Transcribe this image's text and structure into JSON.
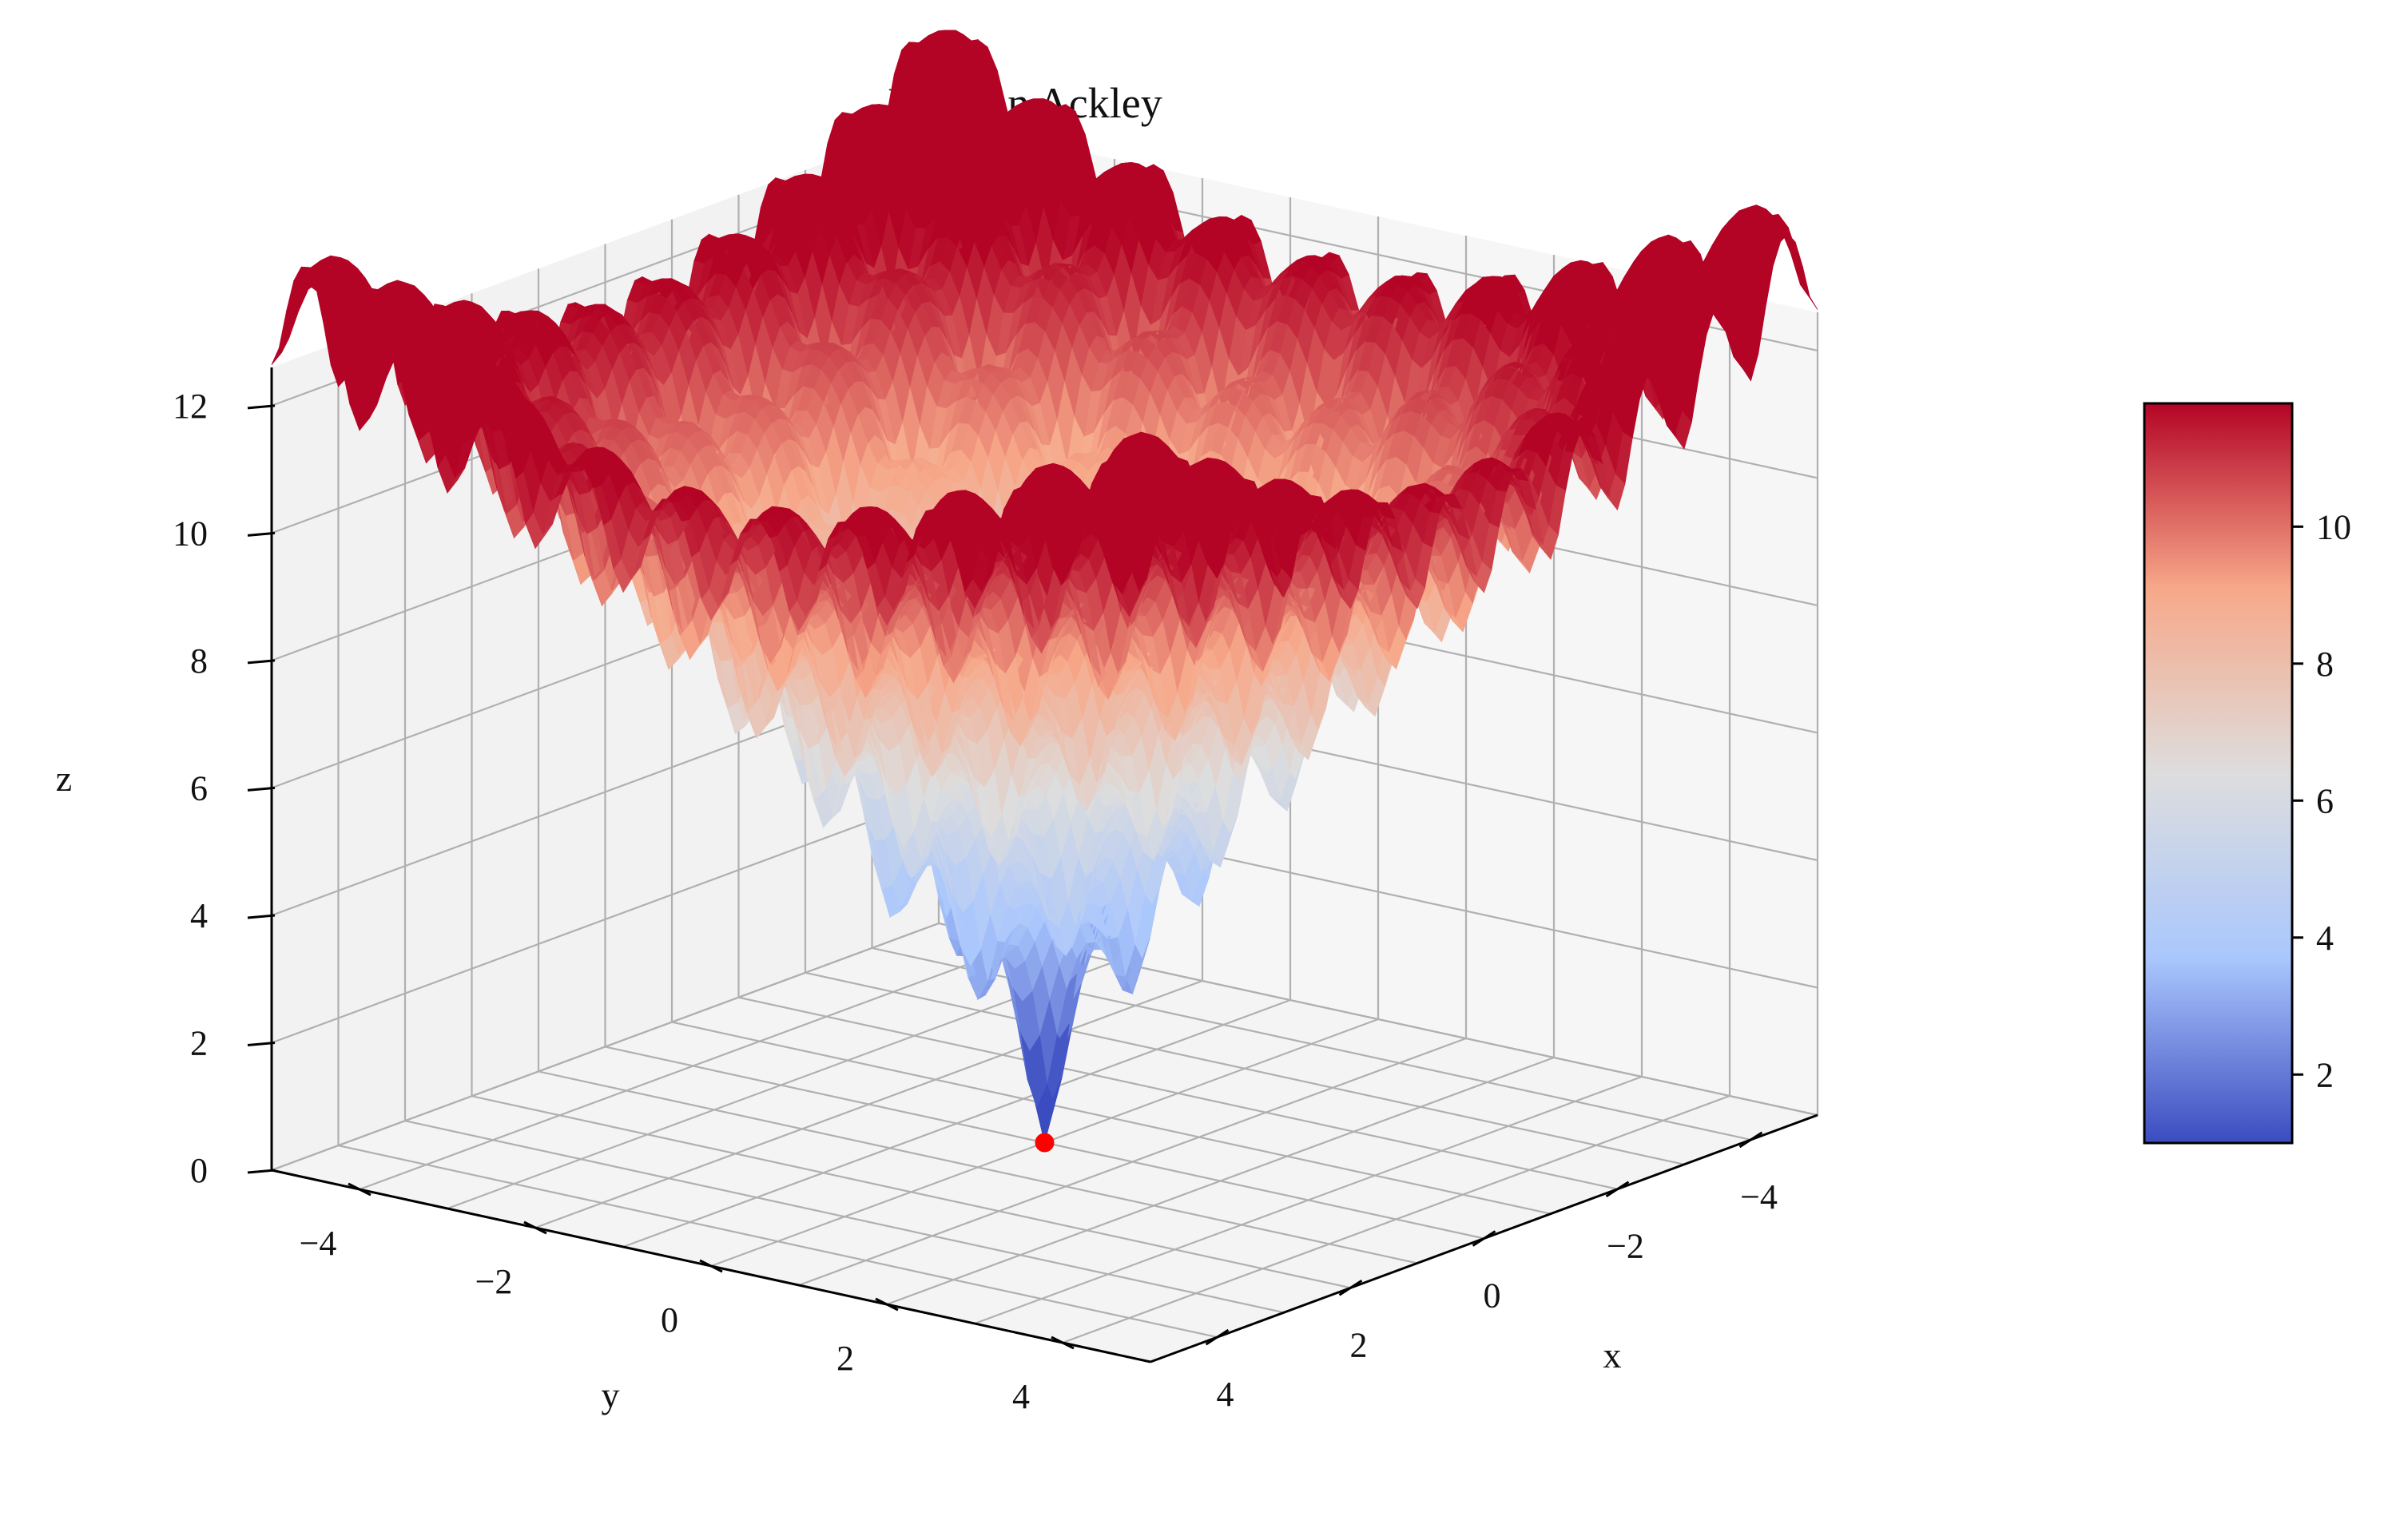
{
  "chart_data": {
    "type": "surface3d",
    "title": "Funcion Ackley",
    "xlabel": "x",
    "ylabel": "y",
    "zlabel": "z",
    "function": "ackley",
    "xlim": [
      -5,
      5
    ],
    "ylim": [
      -5,
      5
    ],
    "zlim": [
      0,
      12.6
    ],
    "x_ticks": [
      -4,
      -2,
      0,
      2,
      4
    ],
    "y_ticks": [
      -4,
      -2,
      0,
      2,
      4
    ],
    "z_ticks": [
      0,
      2,
      4,
      6,
      8,
      10,
      12
    ],
    "x_tick_labels": [
      "−4",
      "−2",
      "0",
      "2",
      "4"
    ],
    "y_tick_labels": [
      "−4",
      "−2",
      "0",
      "2",
      "4"
    ],
    "z_tick_labels": [
      "0",
      "2",
      "4",
      "6",
      "8",
      "10",
      "12"
    ],
    "colormap": "coolwarm",
    "colorbar": {
      "range": [
        1.0,
        11.8
      ],
      "ticks": [
        2,
        4,
        6,
        8,
        10
      ],
      "tick_labels": [
        "2",
        "4",
        "6",
        "8",
        "10"
      ],
      "colors": [
        "#3b4cc0",
        "#aac7fd",
        "#dddddd",
        "#f7a889",
        "#b40426"
      ]
    },
    "minimum_point": {
      "x": 0,
      "y": 0,
      "z": 0,
      "color": "#ff0000"
    },
    "grid": true
  }
}
